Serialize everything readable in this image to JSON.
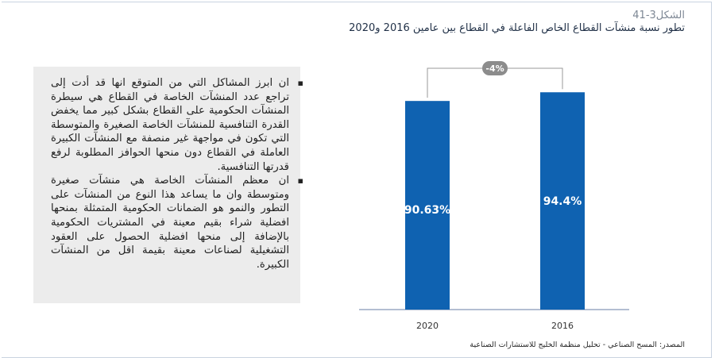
{
  "figure": {
    "number": "الشكل3-41",
    "title": "تطور نسبة منشآت القطاع الخاص الفاعلة في القطاع بين عامين 2016 و2020",
    "source": "المصدر: المسح الصناعي - تحليل منظمة الخليج للاستشارات الصناعية"
  },
  "bullets": [
    "ان ابرز المشاكل التي من المتوقع انها قد أدت إلى تراجع عدد المنشآت الخاصة في القطاع هي سيطرة المنشآت الحكومية على القطاع بشكل كبير مما يخفض القدرة التنافسية للمنشآت الخاصة الصغيرة والمتوسطة التي تكون في مواجهة غير منصفة مع المنشآت الكبيرة العاملة في القطاع دون منحها الحوافز المطلوبة لرفع قدرتها التنافسية.",
    "ان معظم المنشآت الخاصة هي منشآت صغيرة ومتوسطة وان ما يساعد هذا النوع من المنشآت على التطور والنمو هو الضمانات الحكومية المتمثلة بمنحها افضلية شراء بقيم معينة في المشتريات الحكومية بالإضافة إلى منحها افضلية الحصول على العقود التشغيلية لصناعات معينة بقيمة اقل من المنشآت الكبيرة."
  ],
  "bullet_symbol": "▪",
  "chart_data": {
    "type": "bar",
    "categories": [
      "2020",
      "2016"
    ],
    "values": [
      90.63,
      94.4
    ],
    "value_labels": [
      "90.63%",
      "94.4%"
    ],
    "change_label": "-4%",
    "color": "#0f62b1",
    "baseline_color": "#9aa8c4",
    "connector_color": "#9a9a9a",
    "badge_color": "#8c8c8c",
    "grid": false,
    "legend": "none"
  }
}
